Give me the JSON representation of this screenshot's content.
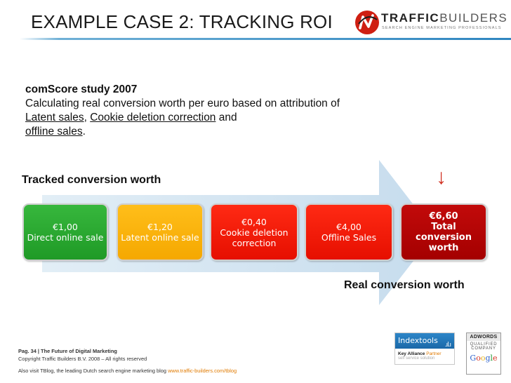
{
  "header": {
    "title": "EXAMPLE CASE 2: TRACKING ROI",
    "logo": {
      "name_bold": "TRAFFIC",
      "name_light": "BUILDERS",
      "tagline": "SEARCH ENGINE MARKETING PROFESSIONALS"
    }
  },
  "intro": {
    "study": "comScore study 2007",
    "line_pre": "Calculating real conversion worth per euro based on attribution of ",
    "latent": "Latent sales",
    "comma": ", ",
    "cookie": "Cookie deletion correction",
    "and": " and",
    "offline": "offline sales",
    "period": "."
  },
  "tracked_label": "Tracked conversion worth",
  "real_label": "Real conversion worth",
  "boxes": [
    {
      "value": "€1,00",
      "label": "Direct online sale",
      "color": "#28a72e"
    },
    {
      "value": "€1,20",
      "label": "Latent online sale",
      "color": "#f7b000"
    },
    {
      "value": "€0,40",
      "label": "Cookie deletion correction",
      "color": "#f01a08"
    },
    {
      "value": "€4,00",
      "label": "Offline Sales",
      "color": "#f01a08"
    },
    {
      "value": "€6,60",
      "label": "Total conversion worth",
      "color": "#b00000"
    }
  ],
  "footer": {
    "page": "Pag. 34 | The Future of Digital Marketing",
    "copyright": "Copyright Traffic Builders B.V. 2008 – All rights reserved",
    "blog_text": "Also visit TBlog, the leading Dutch search engine marketing blog ",
    "blog_link": "www.traffic-builders.com/tblog"
  },
  "badges": {
    "indextools": {
      "name": "Indextools",
      "partner_bold": "Key Alliance",
      "partner": "Partner",
      "sub": "self service solution"
    },
    "adwords": {
      "line1": "ADWORDS",
      "line2": "QUALIFIED",
      "line3": "COMPANY",
      "google": "Google"
    }
  }
}
